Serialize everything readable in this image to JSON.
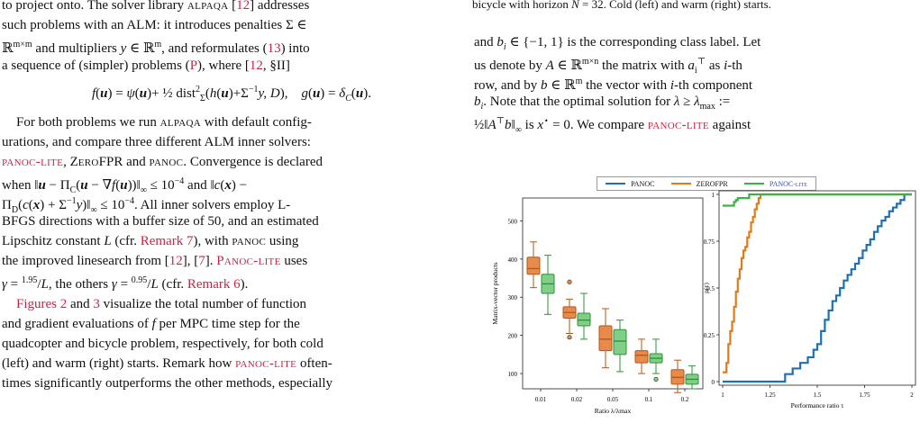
{
  "left_column": {
    "line1": "to project onto. The solver library ALPAQA [12] addresses",
    "line2": "such problems with an ALM: it introduces penalties Σ ∈",
    "line3": "ℝ^{m×m} and multipliers y ∈ ℝ^m, and reformulates (13) into",
    "line4": "a sequence of (simpler) problems (P), where [12, §II]",
    "equation": "f(u) = ψ(u) + ½ dist²_Σ(h(u) + Σ⁻¹y, D),   g(u) = δ_C(u).",
    "para2": [
      "For both problems we run ALPAQA with default config-",
      "urations, and compare three different ALM inner solvers:",
      "PANOC-lite, ZEROFPR and PANOC. Convergence is declared",
      "when ‖u − Π_C(u − ∇f(u))‖∞ ≤ 10⁻⁴ and ‖c(x) −",
      "Π_D(c(x) + Σ⁻¹y)‖∞ ≤ 10⁻⁴. All inner solvers employ L-",
      "BFGS directions with a buffer size of 50, and an estimated",
      "Lipschitz constant L (cfr. Remark 7), with PANOC using",
      "the improved linesearch from [12], [7]. PANOC-lite uses",
      "γ = 1.95/L, the others γ = 0.95/L (cfr. Remark 6)."
    ],
    "para3": [
      "Figures 2 and 3 visualize the total number of function",
      "and gradient evaluations of f per MPC time step for the",
      "quadcopter and bicycle problem, respectively, for both cold",
      "(left) and warm (right) starts. Remark how PANOC-lite often-",
      "times significantly outperforms the other methods, especially"
    ]
  },
  "right_column": {
    "caption_tail": "bicycle with horizon N = 32. Cold (left) and warm (right) starts.",
    "para": [
      "and bᵢ ∈ {−1, 1} is the corresponding class label. Let",
      "us denote by A ∈ ℝ^{m×n} the matrix with aᵢ^⊤ as i-th",
      "row, and by b ∈ ℝ^m the vector with i-th component",
      "bᵢ. Note that the optimal solution for λ ≥ λ_max :=",
      "½‖A^⊤b‖∞ is x* = 0. We compare PANOC-lite against"
    ]
  },
  "legend": [
    {
      "label": "PANOC",
      "color": "#1f6fb4"
    },
    {
      "label": "ZEROFPR",
      "color": "#e07b1a"
    },
    {
      "label": "PANOC-lite",
      "color": "#3bb14a"
    }
  ],
  "chart_data": [
    {
      "type": "box",
      "xlabel": "Ratio λ/λmax",
      "ylabel": "Matrix-vector products",
      "categories": [
        "0.01",
        "0.02",
        "0.05",
        "0.1",
        "0.2"
      ],
      "yticks": [
        100,
        200,
        300,
        400,
        500
      ],
      "ylim": [
        60,
        560
      ],
      "series": [
        {
          "name": "ZEROFPR",
          "boxes": [
            {
              "min": 325,
              "q1": 360,
              "median": 375,
              "q3": 405,
              "max": 445,
              "outliers": []
            },
            {
              "min": 205,
              "q1": 245,
              "median": 260,
              "q3": 275,
              "max": 295,
              "outliers": [
                340,
                195
              ]
            },
            {
              "min": 115,
              "q1": 160,
              "median": 190,
              "q3": 225,
              "max": 270,
              "outliers": []
            },
            {
              "min": 100,
              "q1": 128,
              "median": 148,
              "q3": 160,
              "max": 190,
              "outliers": []
            },
            {
              "min": 50,
              "q1": 72,
              "median": 90,
              "q3": 110,
              "max": 135,
              "outliers": []
            }
          ]
        },
        {
          "name": "PANOC-lite",
          "boxes": [
            {
              "min": 255,
              "q1": 310,
              "median": 335,
              "q3": 360,
              "max": 410,
              "outliers": []
            },
            {
              "min": 190,
              "q1": 225,
              "median": 240,
              "q3": 258,
              "max": 310,
              "outliers": []
            },
            {
              "min": 105,
              "q1": 150,
              "median": 185,
              "q3": 215,
              "max": 240,
              "outliers": []
            },
            {
              "min": 100,
              "q1": 128,
              "median": 140,
              "q3": 152,
              "max": 190,
              "outliers": [
                85
              ]
            },
            {
              "min": 60,
              "q1": 72,
              "median": 85,
              "q3": 98,
              "max": 120,
              "outliers": []
            }
          ]
        }
      ]
    },
    {
      "type": "line",
      "xlabel": "Performance ratio τ",
      "ylabel": "ρ(τ)",
      "xticks": [
        "1",
        "1.25",
        "1.5",
        "1.75",
        "2"
      ],
      "yticks": [
        "0",
        "0.25",
        "0.5",
        "0.75",
        "1"
      ],
      "xlim": [
        1,
        2
      ],
      "ylim": [
        0,
        1
      ],
      "series": [
        {
          "name": "PANOC",
          "x": [
            1.0,
            1.32,
            1.33,
            1.36,
            1.37,
            1.4,
            1.41,
            1.44,
            1.45,
            1.47,
            1.48,
            1.5,
            1.52,
            1.54,
            1.56,
            1.58,
            1.6,
            1.62,
            1.64,
            1.66,
            1.68,
            1.7,
            1.72,
            1.74,
            1.76,
            1.78,
            1.8,
            1.82,
            1.84,
            1.86,
            1.88,
            1.9,
            1.92,
            1.94,
            1.96,
            2.0
          ],
          "y": [
            0.0,
            0.0,
            0.04,
            0.04,
            0.07,
            0.07,
            0.1,
            0.1,
            0.13,
            0.13,
            0.17,
            0.2,
            0.27,
            0.33,
            0.38,
            0.43,
            0.46,
            0.5,
            0.54,
            0.57,
            0.6,
            0.63,
            0.66,
            0.7,
            0.73,
            0.76,
            0.8,
            0.83,
            0.86,
            0.88,
            0.91,
            0.93,
            0.95,
            0.97,
            1.0,
            1.0
          ]
        },
        {
          "name": "ZEROFPR",
          "x": [
            1.0,
            1.02,
            1.03,
            1.04,
            1.05,
            1.06,
            1.07,
            1.08,
            1.09,
            1.1,
            1.11,
            1.12,
            1.13,
            1.14,
            1.15,
            1.16,
            1.17,
            1.18,
            1.19,
            1.2,
            2.0
          ],
          "y": [
            0.05,
            0.1,
            0.2,
            0.27,
            0.32,
            0.4,
            0.48,
            0.55,
            0.6,
            0.66,
            0.7,
            0.72,
            0.77,
            0.8,
            0.85,
            0.88,
            0.92,
            0.95,
            0.98,
            1.0,
            1.0
          ]
        },
        {
          "name": "PANOC-lite",
          "x": [
            1.0,
            1.05,
            1.06,
            1.07,
            1.08,
            1.13,
            1.14,
            2.0
          ],
          "y": [
            0.94,
            0.94,
            0.96,
            0.97,
            0.98,
            0.98,
            1.0,
            1.0
          ]
        }
      ]
    }
  ]
}
